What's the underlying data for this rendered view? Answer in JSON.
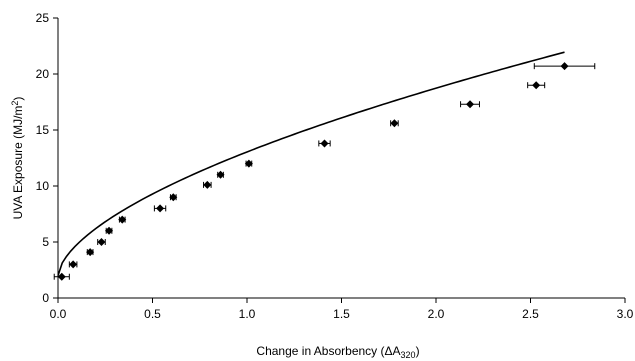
{
  "chart_data": {
    "type": "scatter",
    "title": "",
    "xlabel_main": "Change in Absorbency (",
    "xlabel_symbol": "ΔA",
    "xlabel_sub": "320",
    "xlabel_close": ")",
    "ylabel_main": "UVA Exposure (MJ/m",
    "ylabel_sup": "2",
    "ylabel_close": ")",
    "xlim": [
      0,
      3.0
    ],
    "ylim": [
      0,
      25
    ],
    "x_ticks": [
      "0.0",
      "0.5",
      "1.0",
      "1.5",
      "2.0",
      "2.5",
      "3.0"
    ],
    "y_ticks": [
      "0",
      "5",
      "10",
      "15",
      "20",
      "25"
    ],
    "grid": false,
    "legend": "none",
    "marker_color": "#000000",
    "points": [
      {
        "x": 0.02,
        "y": 1.9,
        "xerr": 0.04
      },
      {
        "x": 0.08,
        "y": 3.0,
        "xerr": 0.02
      },
      {
        "x": 0.17,
        "y": 4.1,
        "xerr": 0.015
      },
      {
        "x": 0.23,
        "y": 5.0,
        "xerr": 0.02
      },
      {
        "x": 0.27,
        "y": 6.0,
        "xerr": 0.015
      },
      {
        "x": 0.34,
        "y": 7.0,
        "xerr": 0.015
      },
      {
        "x": 0.54,
        "y": 8.0,
        "xerr": 0.03
      },
      {
        "x": 0.61,
        "y": 9.0,
        "xerr": 0.015
      },
      {
        "x": 0.79,
        "y": 10.1,
        "xerr": 0.02
      },
      {
        "x": 0.86,
        "y": 11.0,
        "xerr": 0.015
      },
      {
        "x": 1.01,
        "y": 12.0,
        "xerr": 0.015
      },
      {
        "x": 1.41,
        "y": 13.8,
        "xerr": 0.03
      },
      {
        "x": 1.78,
        "y": 15.6,
        "xerr": 0.02
      },
      {
        "x": 2.18,
        "y": 17.3,
        "xerr": 0.05
      },
      {
        "x": 2.53,
        "y": 19.0,
        "xerr": 0.045
      },
      {
        "x": 2.68,
        "y": 20.7,
        "xerr": 0.16
      }
    ],
    "trendline": {
      "a": 2.0,
      "k": 11.04,
      "p": 0.6,
      "x_start": 0.0,
      "x_end": 2.68
    }
  }
}
